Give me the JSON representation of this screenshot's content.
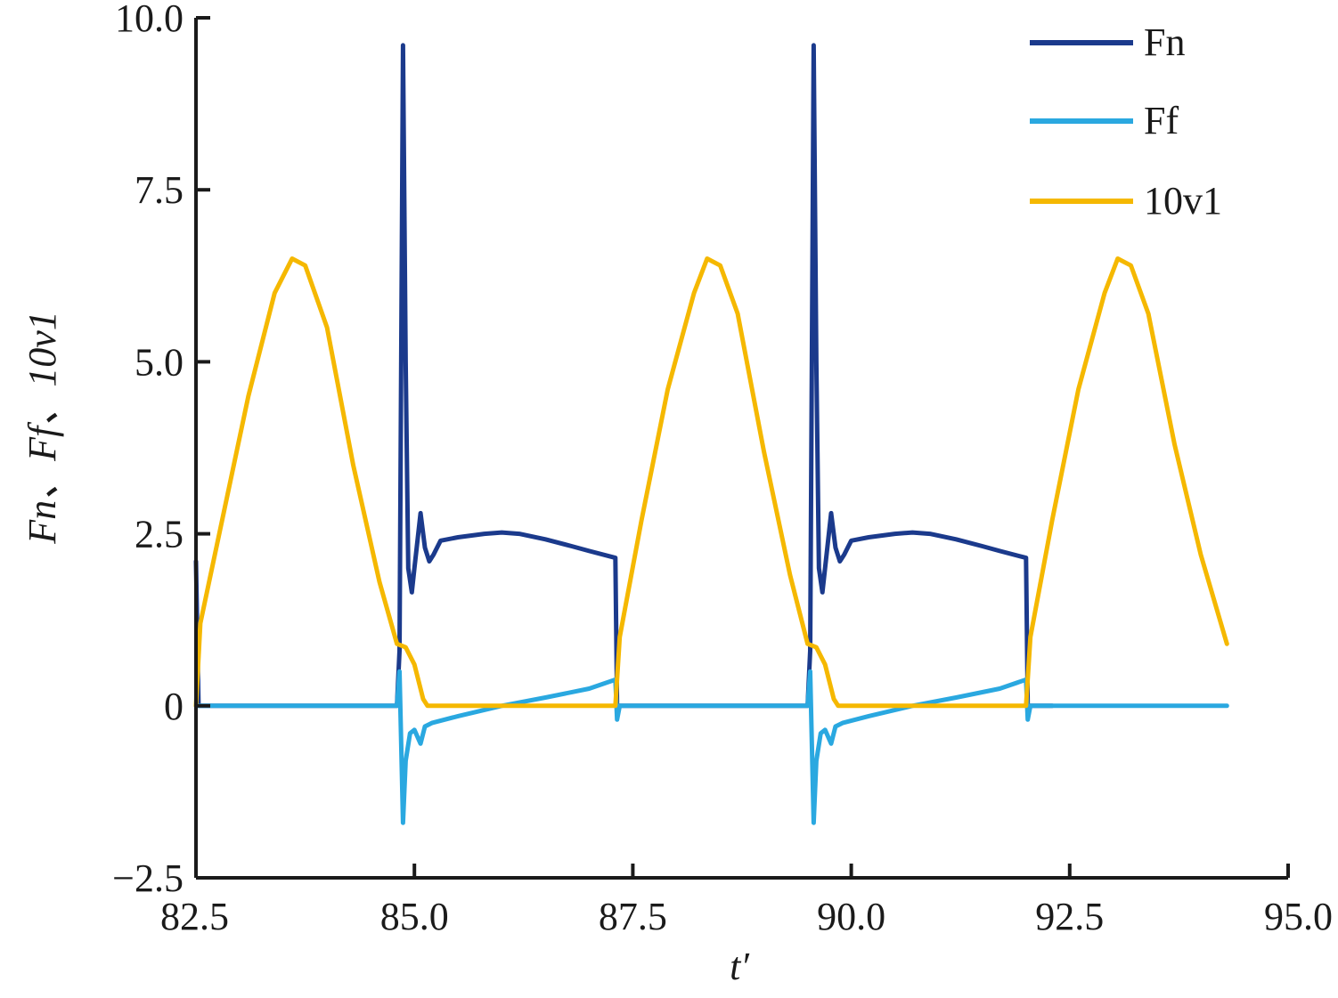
{
  "chart_data": {
    "type": "line",
    "title": "",
    "xlabel": "t′",
    "ylabel": "Fn、Ff、10v1",
    "xlim": [
      82.5,
      95.0
    ],
    "ylim": [
      -2.5,
      10.0
    ],
    "x_ticks": [
      "82.5",
      "85.0",
      "87.5",
      "90.0",
      "92.5",
      "95.0"
    ],
    "y_ticks": [
      "−2.5",
      "0",
      "2.5",
      "5.0",
      "7.5",
      "10.0"
    ],
    "grid": false,
    "legend_position": "top-right",
    "series": [
      {
        "name": "Fn",
        "color": "#1b3a8c",
        "points": [
          [
            82.5,
            2.1
          ],
          [
            82.53,
            0.0
          ],
          [
            82.6,
            0.0
          ],
          [
            84.8,
            0.0
          ],
          [
            84.83,
            0.8
          ],
          [
            84.87,
            9.6
          ],
          [
            84.9,
            5.0
          ],
          [
            84.93,
            2.0
          ],
          [
            84.97,
            1.65
          ],
          [
            85.0,
            2.0
          ],
          [
            85.07,
            2.8
          ],
          [
            85.12,
            2.3
          ],
          [
            85.17,
            2.1
          ],
          [
            85.22,
            2.2
          ],
          [
            85.3,
            2.4
          ],
          [
            85.5,
            2.45
          ],
          [
            85.8,
            2.5
          ],
          [
            86.0,
            2.52
          ],
          [
            86.2,
            2.5
          ],
          [
            86.5,
            2.42
          ],
          [
            86.8,
            2.32
          ],
          [
            87.0,
            2.25
          ],
          [
            87.3,
            2.15
          ],
          [
            87.32,
            0.0
          ],
          [
            87.6,
            0.0
          ],
          [
            89.5,
            0.0
          ],
          [
            89.53,
            0.8
          ],
          [
            89.57,
            9.6
          ],
          [
            89.6,
            5.0
          ],
          [
            89.63,
            2.0
          ],
          [
            89.67,
            1.65
          ],
          [
            89.7,
            2.0
          ],
          [
            89.77,
            2.8
          ],
          [
            89.82,
            2.3
          ],
          [
            89.87,
            2.1
          ],
          [
            89.92,
            2.2
          ],
          [
            90.0,
            2.4
          ],
          [
            90.2,
            2.45
          ],
          [
            90.5,
            2.5
          ],
          [
            90.7,
            2.52
          ],
          [
            90.9,
            2.5
          ],
          [
            91.2,
            2.42
          ],
          [
            91.5,
            2.32
          ],
          [
            91.7,
            2.25
          ],
          [
            92.0,
            2.15
          ],
          [
            92.02,
            0.0
          ],
          [
            92.3,
            0.0
          ]
        ]
      },
      {
        "name": "Ff",
        "color": "#2aa8e0",
        "points": [
          [
            82.5,
            0.0
          ],
          [
            84.8,
            0.0
          ],
          [
            84.83,
            0.5
          ],
          [
            84.87,
            -1.7
          ],
          [
            84.9,
            -0.8
          ],
          [
            84.95,
            -0.4
          ],
          [
            85.0,
            -0.35
          ],
          [
            85.07,
            -0.55
          ],
          [
            85.12,
            -0.3
          ],
          [
            85.2,
            -0.25
          ],
          [
            85.5,
            -0.15
          ],
          [
            86.0,
            0.0
          ],
          [
            86.5,
            0.12
          ],
          [
            87.0,
            0.25
          ],
          [
            87.3,
            0.38
          ],
          [
            87.32,
            -0.2
          ],
          [
            87.35,
            0.0
          ],
          [
            89.5,
            0.0
          ],
          [
            89.53,
            0.5
          ],
          [
            89.57,
            -1.7
          ],
          [
            89.6,
            -0.8
          ],
          [
            89.65,
            -0.4
          ],
          [
            89.7,
            -0.35
          ],
          [
            89.77,
            -0.55
          ],
          [
            89.82,
            -0.3
          ],
          [
            89.9,
            -0.25
          ],
          [
            90.2,
            -0.15
          ],
          [
            90.7,
            0.0
          ],
          [
            91.2,
            0.12
          ],
          [
            91.7,
            0.25
          ],
          [
            92.0,
            0.38
          ],
          [
            92.02,
            -0.2
          ],
          [
            92.05,
            0.0
          ],
          [
            94.3,
            0.0
          ]
        ]
      },
      {
        "name": "10v1",
        "color": "#f5b800",
        "points": [
          [
            82.5,
            0.0
          ],
          [
            82.55,
            1.2
          ],
          [
            82.8,
            2.7
          ],
          [
            83.1,
            4.5
          ],
          [
            83.4,
            6.0
          ],
          [
            83.6,
            6.5
          ],
          [
            83.75,
            6.4
          ],
          [
            84.0,
            5.5
          ],
          [
            84.3,
            3.5
          ],
          [
            84.6,
            1.8
          ],
          [
            84.8,
            0.9
          ],
          [
            84.9,
            0.85
          ],
          [
            85.0,
            0.6
          ],
          [
            85.1,
            0.1
          ],
          [
            85.15,
            0.0
          ],
          [
            87.3,
            0.0
          ],
          [
            87.35,
            1.0
          ],
          [
            87.6,
            2.7
          ],
          [
            87.9,
            4.6
          ],
          [
            88.2,
            6.0
          ],
          [
            88.35,
            6.5
          ],
          [
            88.5,
            6.4
          ],
          [
            88.7,
            5.7
          ],
          [
            89.0,
            3.7
          ],
          [
            89.3,
            1.9
          ],
          [
            89.5,
            0.9
          ],
          [
            89.6,
            0.85
          ],
          [
            89.7,
            0.6
          ],
          [
            89.8,
            0.1
          ],
          [
            89.85,
            0.0
          ],
          [
            92.0,
            0.0
          ],
          [
            92.05,
            1.0
          ],
          [
            92.3,
            2.7
          ],
          [
            92.6,
            4.6
          ],
          [
            92.9,
            6.0
          ],
          [
            93.05,
            6.5
          ],
          [
            93.2,
            6.4
          ],
          [
            93.4,
            5.7
          ],
          [
            93.7,
            3.8
          ],
          [
            94.0,
            2.2
          ],
          [
            94.3,
            0.9
          ]
        ]
      }
    ]
  }
}
